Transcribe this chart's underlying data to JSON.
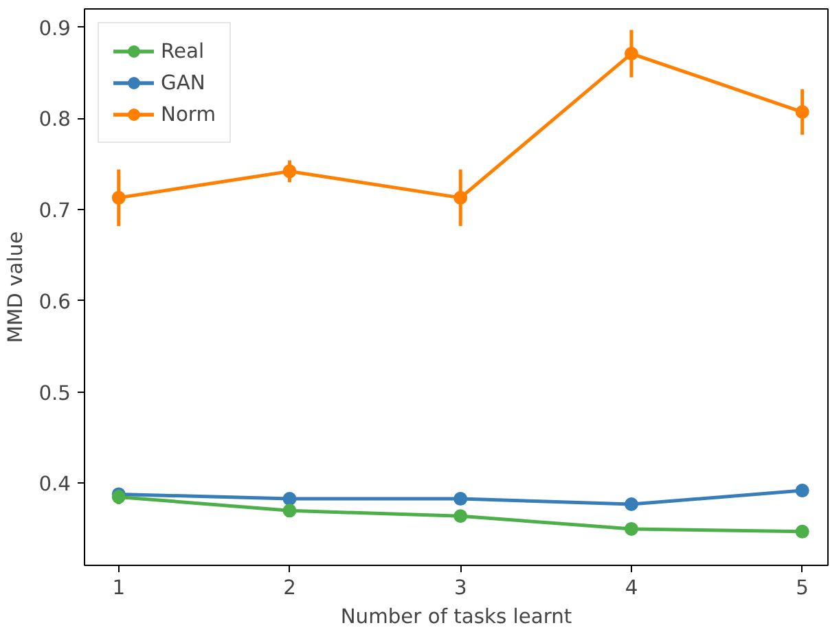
{
  "chart_data": {
    "type": "line",
    "xlabel": "Number of tasks learnt",
    "ylabel": "MMD value",
    "x": [
      1,
      2,
      3,
      4,
      5
    ],
    "series": [
      {
        "name": "Real",
        "color": "#4daf4a",
        "values": [
          0.385,
          0.37,
          0.364,
          0.35,
          0.347
        ],
        "errors": [
          0.008,
          0.004,
          0.004,
          0.004,
          0.005
        ]
      },
      {
        "name": "GAN",
        "color": "#377eb8",
        "values": [
          0.388,
          0.383,
          0.383,
          0.377,
          0.392
        ],
        "errors": [
          0.007,
          0.005,
          0.005,
          0.006,
          0.007
        ]
      },
      {
        "name": "Norm",
        "color": "#ff7f00",
        "values": [
          0.713,
          0.742,
          0.713,
          0.871,
          0.807
        ],
        "errors": [
          0.031,
          0.012,
          0.031,
          0.026,
          0.025
        ]
      }
    ],
    "xlim": [
      0.8,
      5.15
    ],
    "ylim": [
      0.31,
      0.92
    ],
    "xticks": [
      1,
      2,
      3,
      4,
      5
    ],
    "yticks": [
      0.4,
      0.5,
      0.6,
      0.7,
      0.8,
      0.9
    ],
    "grid": false,
    "legend": "top left",
    "marker": "circle",
    "line_style": "solid"
  }
}
